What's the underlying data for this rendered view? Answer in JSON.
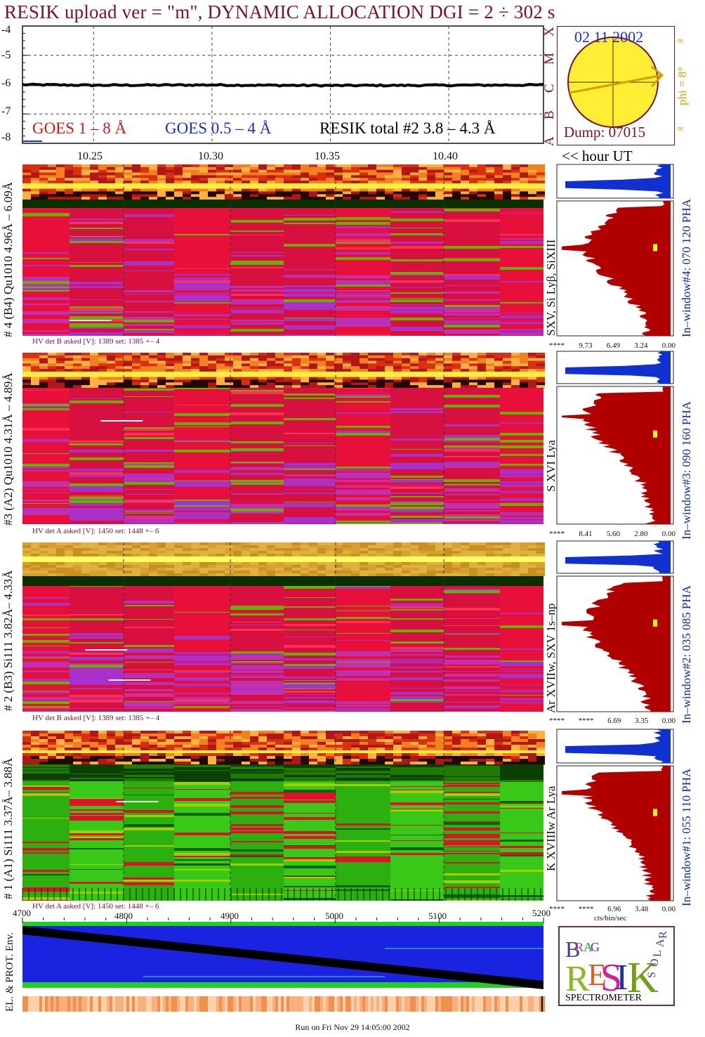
{
  "header": {
    "title": "RESIK upload ver = \"m\", DYNAMIC ALLOCATION  DGI =   2 ÷ 302 s"
  },
  "goes_panel": {
    "legend_goes_long": "GOES 1 – 8 Å",
    "legend_goes_short": "GOES 0.5 – 4 Å",
    "legend_resik": "RESIK total #2  3.8 – 4.3 Å",
    "y_ticks": [
      "-4",
      "-5",
      "-6",
      "-7",
      "-8"
    ],
    "class_letters": [
      "X",
      "M",
      "C",
      "B",
      "A"
    ],
    "colors": {
      "goes_long": "#d01818",
      "goes_short": "#1830d0",
      "resik": "#000000"
    }
  },
  "sun_panel": {
    "date": "02 11 2002",
    "dump": "Dump: 07015",
    "phi_label": "phi =  8°",
    "inf_top": "∞",
    "inf_bottom": "∞"
  },
  "time_axis": {
    "ticks": [
      "10.25",
      "10.30",
      "10.35",
      "10.40"
    ],
    "unit_label": "<< hour UT"
  },
  "channels": [
    {
      "left_label": "# 4 (B4) Qu1010 4.96Å – 6.09Å",
      "ion_label": "SXV, Si Lyβ, SiXIII",
      "pha_label": "In–window#4:  070 120 PHA",
      "hv_label": "HV det B asked [V]:  1389 set:  1385 +–    4",
      "scale": [
        "****",
        "9.73",
        "6.49",
        "3.24",
        "0.00"
      ]
    },
    {
      "left_label": "#3 (A2) Qu1010  4.31Å – 4.89Å",
      "ion_label": "S XVI Lya",
      "pha_label": "In–window#3:  090 160 PHA",
      "hv_label": "HV det A asked [V]:  1450 set:  1448 +–    6",
      "scale": [
        "****",
        "8.41",
        "5.60",
        "2.80",
        "0.00"
      ]
    },
    {
      "left_label": "# 2 (B3) Si111  3.82Å– 4.33Å",
      "ion_label": "Ar XVIIw,  SXV 1s–np",
      "pha_label": "In–window#2:  035 085 PHA",
      "hv_label": "HV det B asked [V]:  1389 set:  1385 +–    4",
      "scale": [
        "****",
        "****",
        "6.69",
        "3.35",
        "0.00"
      ]
    },
    {
      "left_label": "# 1 (A1) Si111  3.37Å– 3.88Å",
      "ion_label": "K XVIIIw  Ar Lya",
      "pha_label": "In–window#1:  055 110 PHA",
      "hv_label": "HV det A asked [V]:  1450 set:  1448 +–    6",
      "scale": [
        "****",
        "****",
        "6.96",
        "3.48",
        "0.00"
      ]
    }
  ],
  "spectrum_axis_label": "cts/bin/sec",
  "bottom_panel": {
    "ticks": [
      "4700",
      "4800",
      "4900",
      "5000",
      "5100",
      "5200"
    ],
    "side_label": "EL. & PROT. Env."
  },
  "logo": {
    "letters": [
      "B",
      "R",
      "A",
      "G",
      "R",
      "E",
      "S",
      "I",
      "K",
      "S",
      "O",
      "L",
      "A",
      "R"
    ],
    "caption": "SPECTROMETER"
  },
  "footer": "Run on Fri Nov 29 14:05:00 2002",
  "chart_data": {
    "type": "line",
    "title": "RESIK upload ver = \"m\", DYNAMIC ALLOCATION  DGI =   2 ÷ 302 s",
    "xlabel": "<< hour UT",
    "ylabel": "",
    "x": [
      10.22,
      10.25,
      10.3,
      10.35,
      10.4,
      10.44
    ],
    "xlim": [
      10.22,
      10.44
    ],
    "ylim": [
      -8,
      -4
    ],
    "series": [
      {
        "name": "GOES 1 – 8 Å",
        "values": [
          -6.02,
          -6.03,
          -6.02,
          -6.04,
          -6.03,
          -6.02
        ]
      },
      {
        "name": "RESIK total #2  3.8 – 4.3 Å",
        "values": [
          -6.0,
          -6.02,
          -6.01,
          -6.03,
          -6.02,
          -6.01
        ]
      }
    ],
    "grid": true
  }
}
